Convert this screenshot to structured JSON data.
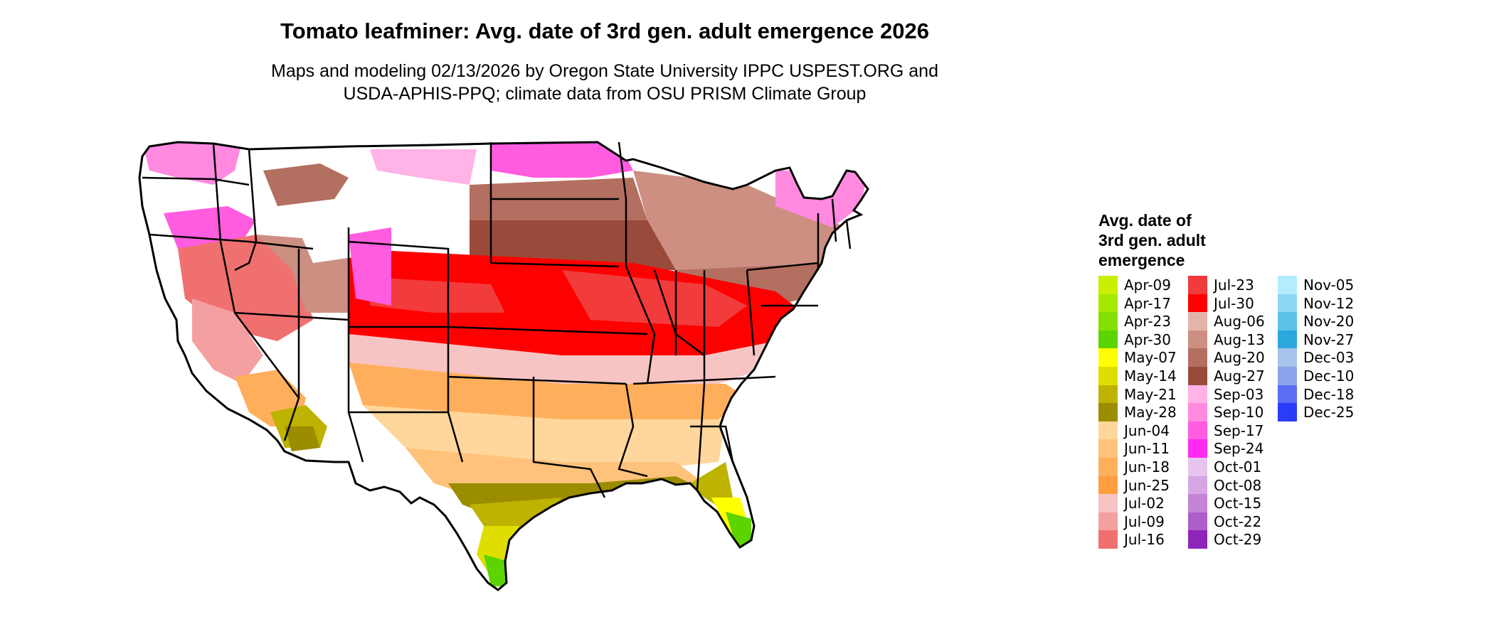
{
  "title": "Tomato leafminer: Avg. date of 3rd gen. adult emergence 2026",
  "subtitle_lines": [
    "Maps and modeling 02/13/2026 by Oregon State University IPPC USPEST.ORG and",
    "USDA-APHIS-PPQ; climate data from OSU PRISM Climate Group"
  ],
  "legend": {
    "title_lines": [
      "Avg. date of",
      "3rd gen. adult",
      "emergence"
    ],
    "items": [
      {
        "label": "Apr-09",
        "color": "#c8f000"
      },
      {
        "label": "Apr-17",
        "color": "#a6e800"
      },
      {
        "label": "Apr-23",
        "color": "#84e000"
      },
      {
        "label": "Apr-30",
        "color": "#5cd400"
      },
      {
        "label": "May-07",
        "color": "#ffff00"
      },
      {
        "label": "May-14",
        "color": "#e0de00"
      },
      {
        "label": "May-21",
        "color": "#bdb300"
      },
      {
        "label": "May-28",
        "color": "#9b8c00"
      },
      {
        "label": "Jun-04",
        "color": "#ffd79c"
      },
      {
        "label": "Jun-11",
        "color": "#ffc27a"
      },
      {
        "label": "Jun-18",
        "color": "#ffaf5c"
      },
      {
        "label": "Jun-25",
        "color": "#ff9d3f"
      },
      {
        "label": "Jul-02",
        "color": "#f7c4c4"
      },
      {
        "label": "Jul-09",
        "color": "#f4a0a0"
      },
      {
        "label": "Jul-16",
        "color": "#f07070"
      },
      {
        "label": "Jul-23",
        "color": "#f23b3b"
      },
      {
        "label": "Jul-30",
        "color": "#ff0000"
      },
      {
        "label": "Aug-06",
        "color": "#e3b5aa"
      },
      {
        "label": "Aug-13",
        "color": "#cc8f82"
      },
      {
        "label": "Aug-20",
        "color": "#b36f60"
      },
      {
        "label": "Aug-27",
        "color": "#9a4a3a"
      },
      {
        "label": "Sep-03",
        "color": "#ffb3e6"
      },
      {
        "label": "Sep-10",
        "color": "#ff8ae0"
      },
      {
        "label": "Sep-17",
        "color": "#ff5ce0"
      },
      {
        "label": "Sep-24",
        "color": "#ff2bf0"
      },
      {
        "label": "Oct-01",
        "color": "#e6c4ee"
      },
      {
        "label": "Oct-08",
        "color": "#d6a6e4"
      },
      {
        "label": "Oct-15",
        "color": "#c384d8"
      },
      {
        "label": "Oct-22",
        "color": "#ad5ec9"
      },
      {
        "label": "Oct-29",
        "color": "#8e24b8"
      },
      {
        "label": "Nov-05",
        "color": "#b3ecff"
      },
      {
        "label": "Nov-12",
        "color": "#8cd8f4"
      },
      {
        "label": "Nov-20",
        "color": "#5cc2ea"
      },
      {
        "label": "Nov-27",
        "color": "#2aa8de"
      },
      {
        "label": "Dec-03",
        "color": "#a8c4ec"
      },
      {
        "label": "Dec-10",
        "color": "#8aa4ec"
      },
      {
        "label": "Dec-18",
        "color": "#5a6ef2"
      },
      {
        "label": "Dec-25",
        "color": "#2a3cf8"
      }
    ]
  }
}
